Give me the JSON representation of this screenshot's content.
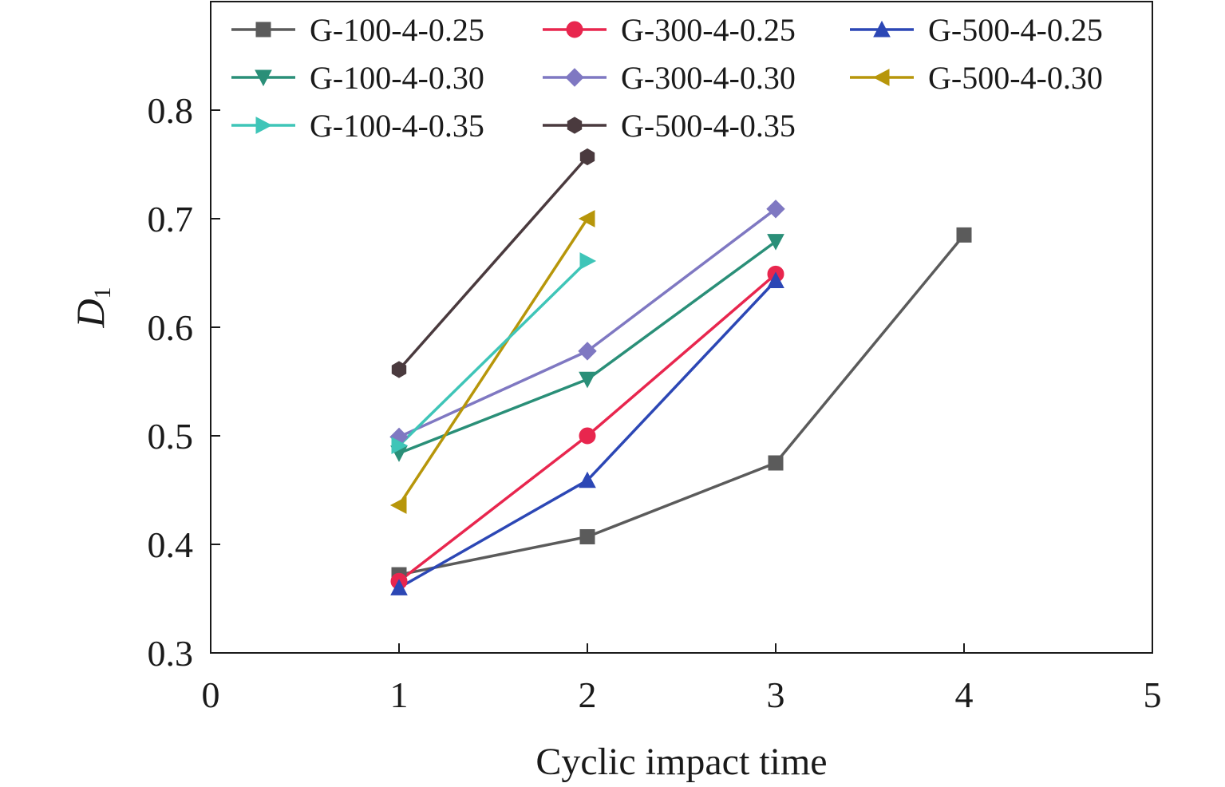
{
  "chart_data": {
    "type": "line",
    "xlabel": "Cyclic impact time",
    "ylabel": {
      "main": "D",
      "sub": "1"
    },
    "xlim": [
      0,
      5
    ],
    "ylim": [
      0.3,
      0.9
    ],
    "xticks": [
      0,
      1,
      2,
      3,
      4,
      5
    ],
    "yticks": [
      0.3,
      0.4,
      0.5,
      0.6,
      0.7,
      0.8
    ],
    "xtick_labels": [
      "0",
      "1",
      "2",
      "3",
      "4",
      "5"
    ],
    "ytick_labels": [
      "0.3",
      "0.4",
      "0.5",
      "0.6",
      "0.7",
      "0.8"
    ],
    "grid": false,
    "legend_position": "top",
    "series": [
      {
        "name": "G-100-4-0.25",
        "color": "#5b5b5b",
        "marker": "square",
        "x": [
          1,
          2,
          3,
          4
        ],
        "y": [
          0.372,
          0.407,
          0.475,
          0.685
        ]
      },
      {
        "name": "G-300-4-0.25",
        "color": "#e8264e",
        "marker": "circle",
        "x": [
          1,
          2,
          3
        ],
        "y": [
          0.366,
          0.5,
          0.649
        ]
      },
      {
        "name": "G-500-4-0.25",
        "color": "#2c47b5",
        "marker": "triangle-up",
        "x": [
          1,
          2,
          3
        ],
        "y": [
          0.36,
          0.459,
          0.643
        ]
      },
      {
        "name": "G-100-4-0.30",
        "color": "#2a8f78",
        "marker": "triangle-down",
        "x": [
          1,
          2,
          3
        ],
        "y": [
          0.484,
          0.552,
          0.679
        ]
      },
      {
        "name": "G-300-4-0.30",
        "color": "#7f78c2",
        "marker": "diamond",
        "x": [
          1,
          2,
          3
        ],
        "y": [
          0.499,
          0.578,
          0.709
        ]
      },
      {
        "name": "G-500-4-0.30",
        "color": "#b7960a",
        "marker": "triangle-left",
        "x": [
          1,
          2
        ],
        "y": [
          0.436,
          0.7
        ]
      },
      {
        "name": "G-100-4-0.35",
        "color": "#3fc5b8",
        "marker": "triangle-right",
        "x": [
          1,
          2
        ],
        "y": [
          0.491,
          0.661
        ]
      },
      {
        "name": "G-500-4-0.35",
        "color": "#4a3a3e",
        "marker": "hexagon",
        "x": [
          1,
          2
        ],
        "y": [
          0.561,
          0.757
        ]
      }
    ]
  }
}
